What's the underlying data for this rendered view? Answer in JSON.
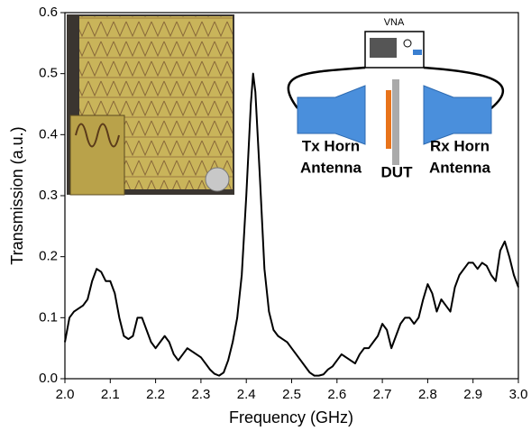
{
  "chart_data": {
    "type": "line",
    "x_label": "Frequency (GHz)",
    "y_label": "Transmission (a.u.)",
    "xlim": [
      2.0,
      3.0
    ],
    "ylim": [
      0.0,
      0.6
    ],
    "xticks": [
      {
        "value": 2,
        "label": "2.0"
      },
      2.1,
      2.2,
      2.3,
      2.4,
      2.5,
      2.6,
      2.7,
      2.8,
      2.9,
      {
        "value": 3,
        "label": "3.0"
      }
    ],
    "yticks": [
      {
        "value": 0,
        "label": "0.0"
      },
      0.1,
      0.2,
      0.3,
      0.4,
      0.5,
      0.6
    ],
    "x": [
      2.0,
      2.01,
      2.02,
      2.03,
      2.04,
      2.05,
      2.06,
      2.07,
      2.08,
      2.09,
      2.1,
      2.11,
      2.12,
      2.13,
      2.14,
      2.15,
      2.16,
      2.17,
      2.18,
      2.19,
      2.2,
      2.21,
      2.22,
      2.23,
      2.24,
      2.25,
      2.26,
      2.27,
      2.28,
      2.29,
      2.3,
      2.31,
      2.32,
      2.33,
      2.34,
      2.35,
      2.36,
      2.37,
      2.38,
      2.39,
      2.4,
      2.41,
      2.415,
      2.42,
      2.43,
      2.44,
      2.45,
      2.46,
      2.47,
      2.48,
      2.49,
      2.5,
      2.51,
      2.52,
      2.53,
      2.54,
      2.55,
      2.56,
      2.57,
      2.58,
      2.59,
      2.6,
      2.61,
      2.62,
      2.63,
      2.64,
      2.65,
      2.66,
      2.67,
      2.68,
      2.69,
      2.7,
      2.71,
      2.72,
      2.73,
      2.74,
      2.75,
      2.76,
      2.77,
      2.78,
      2.79,
      2.8,
      2.81,
      2.82,
      2.83,
      2.84,
      2.85,
      2.86,
      2.87,
      2.88,
      2.89,
      2.9,
      2.91,
      2.92,
      2.93,
      2.94,
      2.95,
      2.96,
      2.97,
      2.98,
      2.99,
      3.0
    ],
    "series": [
      {
        "color": "#000000",
        "values": [
          0.06,
          0.1,
          0.11,
          0.115,
          0.12,
          0.13,
          0.16,
          0.18,
          0.175,
          0.16,
          0.16,
          0.14,
          0.1,
          0.07,
          0.065,
          0.07,
          0.1,
          0.1,
          0.08,
          0.06,
          0.05,
          0.06,
          0.07,
          0.06,
          0.04,
          0.03,
          0.04,
          0.05,
          0.045,
          0.04,
          0.035,
          0.025,
          0.015,
          0.008,
          0.005,
          0.01,
          0.03,
          0.06,
          0.1,
          0.17,
          0.3,
          0.45,
          0.5,
          0.47,
          0.33,
          0.18,
          0.11,
          0.08,
          0.07,
          0.065,
          0.06,
          0.05,
          0.04,
          0.03,
          0.02,
          0.01,
          0.005,
          0.005,
          0.007,
          0.015,
          0.02,
          0.03,
          0.04,
          0.035,
          0.03,
          0.025,
          0.04,
          0.05,
          0.05,
          0.06,
          0.07,
          0.09,
          0.08,
          0.05,
          0.07,
          0.09,
          0.1,
          0.1,
          0.09,
          0.1,
          0.13,
          0.155,
          0.14,
          0.11,
          0.13,
          0.12,
          0.11,
          0.15,
          0.17,
          0.18,
          0.19,
          0.19,
          0.18,
          0.19,
          0.185,
          0.17,
          0.16,
          0.21,
          0.225,
          0.2,
          0.17,
          0.15
        ]
      }
    ],
    "annotations": [
      "VNA",
      "Tx Horn",
      "Antenna",
      "DUT",
      "Rx Horn",
      "Antenna"
    ]
  }
}
